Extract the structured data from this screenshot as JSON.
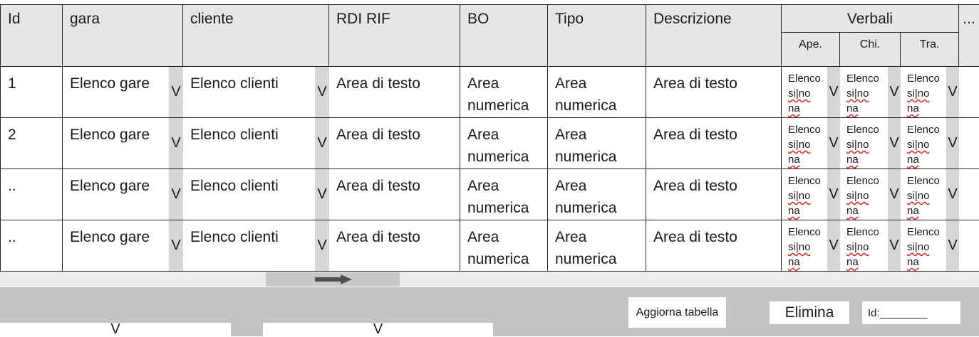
{
  "table": {
    "headers": {
      "id": "Id",
      "gara": "gara",
      "cliente": "cliente",
      "rdi_rif": "RDI RIF",
      "bo": "BO",
      "tipo": "Tipo",
      "descrizione": "Descrizione",
      "verbali": "Verbali",
      "verbali_sub": [
        "Ape.",
        "Chi.",
        "Tra."
      ],
      "more": "..."
    },
    "dropdown_glyph": "V",
    "rows": [
      {
        "id": "1",
        "gara": "Elenco gare",
        "cliente": "Elenco clienti",
        "rdi_rif": "Area di testo",
        "bo": "Area numerica",
        "tipo": "Area numerica",
        "descrizione": "Area di testo",
        "verbali": [
          {
            "l1": "Elenco",
            "l2": "si|no",
            "l3": "na"
          },
          {
            "l1": "Elenco",
            "l2": "si|no",
            "l3": "na"
          },
          {
            "l1": "Elenco",
            "l2": "si|no",
            "l3": "na"
          }
        ]
      },
      {
        "id": "2",
        "gara": "Elenco gare",
        "cliente": "Elenco clienti",
        "rdi_rif": "Area di testo",
        "bo": "Area numerica",
        "tipo": "Area numerica",
        "descrizione": "Area di testo",
        "verbali": [
          {
            "l1": "Elenco",
            "l2": "si|no",
            "l3": "na"
          },
          {
            "l1": "Elenco",
            "l2": "si|no",
            "l3": "na"
          },
          {
            "l1": "Elenco",
            "l2": "si|no",
            "l3": "na"
          }
        ]
      },
      {
        "id": "..",
        "gara": "Elenco gare",
        "cliente": "Elenco clienti",
        "rdi_rif": "Area di testo",
        "bo": "Area numerica",
        "tipo": "Area numerica",
        "descrizione": "Area di testo",
        "verbali": [
          {
            "l1": "Elenco",
            "l2": "si|no",
            "l3": "na"
          },
          {
            "l1": "Elenco",
            "l2": "si|no",
            "l3": "na"
          },
          {
            "l1": "Elenco",
            "l2": "si|no",
            "l3": "na"
          }
        ]
      },
      {
        "id": "..",
        "gara": "Elenco gare",
        "cliente": "Elenco clienti",
        "rdi_rif": "Area di testo",
        "bo": "Area numerica",
        "tipo": "Area numerica",
        "descrizione": "Area di testo",
        "verbali": [
          {
            "l1": "Elenco",
            "l2": "si|no",
            "l3": "na"
          },
          {
            "l1": "Elenco",
            "l2": "si|no",
            "l3": "na"
          },
          {
            "l1": "Elenco",
            "l2": "si|no",
            "l3": "na"
          }
        ]
      }
    ]
  },
  "scrollbar": {
    "arrow_icon": "right-arrow-icon"
  },
  "bottom": {
    "update_label": "Aggiorna tabella",
    "delete_label": "Elimina",
    "id_field_label": "Id:________",
    "select_1_glyph": "V",
    "select_2_glyph": "V"
  }
}
